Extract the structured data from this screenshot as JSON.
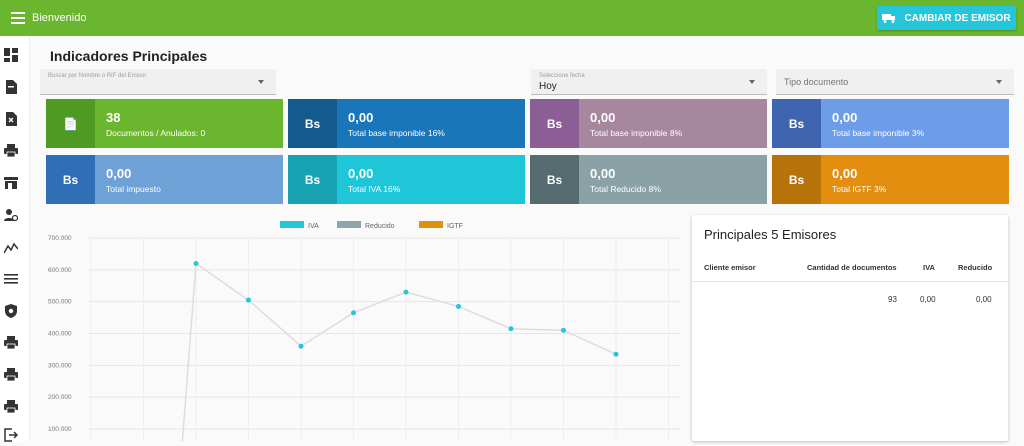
{
  "topbar": {
    "title": "Bienvenido",
    "switch_button": "CAMBIAR DE EMISOR"
  },
  "sidebar": {
    "icons": [
      "dashboard-icon",
      "document-icon",
      "document-x-icon",
      "printer-icon",
      "store-icon",
      "user-settings-icon",
      "trend-icon",
      "list-icon",
      "shield-icon",
      "printer-icon",
      "printer-icon",
      "printer-icon",
      "logout-icon"
    ]
  },
  "page": {
    "title": "Indicadores Principales"
  },
  "filters": {
    "emisor_placeholder": "Buscar por Nombre o RIF del Emisor",
    "fecha_label": "Seleccione fecha",
    "fecha_value": "Hoy",
    "tipo_placeholder": "Tipo documento"
  },
  "cards": [
    {
      "icon": "📄",
      "value": "38",
      "label": "Documentos / Anulados: 0",
      "color": "#6bb62f",
      "dark": "#4e9a22"
    },
    {
      "icon": "Bs",
      "value": "0,00",
      "label": "Total base imponible 16%",
      "color": "#1976b9",
      "dark": "#145a8f"
    },
    {
      "icon": "Bs",
      "value": "0,00",
      "label": "Total base imponible 8%",
      "color": "#a6879e",
      "dark": "#8b5e96"
    },
    {
      "icon": "Bs",
      "value": "0,00",
      "label": "Total base imponible 3%",
      "color": "#6d9de8",
      "dark": "#3f64b0"
    },
    {
      "icon": "Bs",
      "value": "0,00",
      "label": "Total impuesto",
      "color": "#6ea1d5",
      "dark": "#2e6fb5"
    },
    {
      "icon": "Bs",
      "value": "0,00",
      "label": "Total IVA 16%",
      "color": "#1ec6d8",
      "dark": "#18a3b3"
    },
    {
      "icon": "Bs",
      "value": "0,00",
      "label": "Total Reducido 8%",
      "color": "#8aa2a6",
      "dark": "#566b70"
    },
    {
      "icon": "Bs",
      "value": "0,00",
      "label": "Total IGTF 3%",
      "color": "#e38e0f",
      "dark": "#b8720a"
    }
  ],
  "chart_data": {
    "type": "line",
    "legend": [
      {
        "name": "IVA",
        "color": "#26c6da"
      },
      {
        "name": "Reducido",
        "color": "#90a4ae"
      },
      {
        "name": "IGTF",
        "color": "#e38e0f"
      }
    ],
    "y_ticks": [
      "700.000",
      "600.000",
      "500.000",
      "400.000",
      "300.000",
      "200.000",
      "100.000"
    ],
    "ylim": [
      100000,
      700000
    ],
    "grid": true,
    "series": [
      {
        "name": "IVA",
        "color": "#26c6da",
        "values": [
          0,
          620000,
          505000,
          360000,
          465000,
          530000,
          485000,
          415000,
          410000,
          335000
        ]
      }
    ]
  },
  "top_emitters": {
    "title": "Principales 5 Emisores",
    "columns": [
      "Cliente emisor",
      "Cantidad de documentos",
      "IVA",
      "Reducido"
    ],
    "rows": [
      {
        "cliente": "",
        "cantidad": "93",
        "iva": "0,00",
        "reducido": "0,00"
      }
    ]
  }
}
